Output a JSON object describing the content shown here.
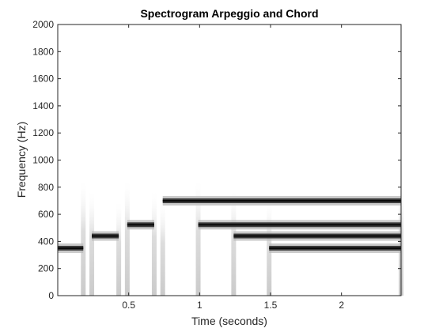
{
  "chart_data": {
    "type": "heatmap",
    "title": "Spectrogram Arpeggio and Chord",
    "xlabel": "Time (seconds)",
    "ylabel": "Frequency (Hz)",
    "xlim": [
      0,
      2.42
    ],
    "ylim": [
      0,
      2000
    ],
    "xticks": [
      0.5,
      1,
      1.5,
      2
    ],
    "xtick_labels": [
      "0.5",
      "1",
      "1.5",
      "2"
    ],
    "yticks": [
      0,
      200,
      400,
      600,
      800,
      1000,
      1200,
      1400,
      1600,
      1800,
      2000
    ],
    "ytick_labels": [
      "0",
      "200",
      "400",
      "600",
      "800",
      "1000",
      "1200",
      "1400",
      "1600",
      "1800",
      "2000"
    ],
    "grid": false,
    "colormap": "gray (reversed)",
    "notes": [
      {
        "start": 0.0,
        "end": 0.18,
        "frequency_hz": 350
      },
      {
        "start": 0.24,
        "end": 0.43,
        "frequency_hz": 440
      },
      {
        "start": 0.49,
        "end": 0.68,
        "frequency_hz": 523
      },
      {
        "start": 0.74,
        "end": 2.42,
        "frequency_hz": 700
      },
      {
        "start": 0.99,
        "end": 2.42,
        "frequency_hz": 523
      },
      {
        "start": 1.24,
        "end": 2.42,
        "frequency_hz": 440
      },
      {
        "start": 1.49,
        "end": 2.42,
        "frequency_hz": 350
      }
    ],
    "onsets": [
      0.18,
      0.24,
      0.43,
      0.49,
      0.68,
      0.74,
      0.99,
      1.24,
      1.49,
      2.42
    ]
  }
}
